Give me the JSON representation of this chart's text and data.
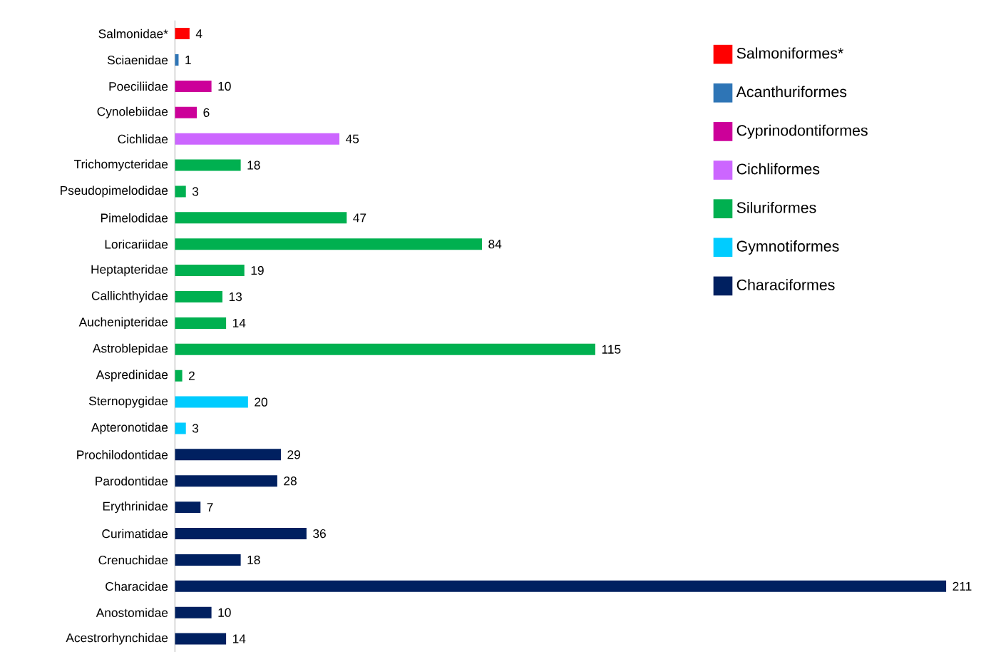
{
  "chart_data": {
    "type": "bar",
    "orientation": "horizontal",
    "data_labels": true,
    "legend": "top right",
    "categories": [
      "Salmonidae*",
      "Sciaenidae",
      "Poeciliidae",
      "Cynolebiidae",
      "Cichlidae",
      "Trichomycteridae",
      "Pseudopimelodidae",
      "Pimelodidae",
      "Loricariidae",
      "Heptapteridae",
      "Callichthyidae",
      "Auchenipteridae",
      "Astroblepidae",
      "Aspredinidae",
      "Sternopygidae",
      "Apteronotidae",
      "Prochilodontidae",
      "Parodontidae",
      "Erythrinidae",
      "Curimatidae",
      "Crenuchidae",
      "Characidae",
      "Anostomidae",
      "Acestrorhynchidae"
    ],
    "series": [
      {
        "name": "Salmoniformes*",
        "color": "#ff0000",
        "values": [
          4,
          null,
          null,
          null,
          null,
          null,
          null,
          null,
          null,
          null,
          null,
          null,
          null,
          null,
          null,
          null,
          null,
          null,
          null,
          null,
          null,
          null,
          null,
          null
        ]
      },
      {
        "name": "Acanthuriformes",
        "color": "#2e75b6",
        "values": [
          null,
          1,
          null,
          null,
          null,
          null,
          null,
          null,
          null,
          null,
          null,
          null,
          null,
          null,
          null,
          null,
          null,
          null,
          null,
          null,
          null,
          null,
          null,
          null
        ]
      },
      {
        "name": "Cyprinodontiformes",
        "color": "#cc0099",
        "values": [
          null,
          null,
          10,
          6,
          null,
          null,
          null,
          null,
          null,
          null,
          null,
          null,
          null,
          null,
          null,
          null,
          null,
          null,
          null,
          null,
          null,
          null,
          null,
          null
        ]
      },
      {
        "name": "Cichliformes",
        "color": "#cc66ff",
        "values": [
          null,
          null,
          null,
          null,
          45,
          null,
          null,
          null,
          null,
          null,
          null,
          null,
          null,
          null,
          null,
          null,
          null,
          null,
          null,
          null,
          null,
          null,
          null,
          null
        ]
      },
      {
        "name": "Siluriformes",
        "color": "#00b050",
        "values": [
          null,
          null,
          null,
          null,
          null,
          18,
          3,
          47,
          84,
          19,
          13,
          14,
          115,
          2,
          null,
          null,
          null,
          null,
          null,
          null,
          null,
          null,
          null,
          null
        ]
      },
      {
        "name": "Gymnotiformes",
        "color": "#00ccff",
        "values": [
          null,
          null,
          null,
          null,
          null,
          null,
          null,
          null,
          null,
          null,
          null,
          null,
          null,
          null,
          20,
          3,
          null,
          null,
          null,
          null,
          null,
          null,
          null,
          null
        ]
      },
      {
        "name": "Characiformes",
        "color": "#002060",
        "values": [
          null,
          null,
          null,
          null,
          null,
          null,
          null,
          null,
          null,
          null,
          null,
          null,
          null,
          null,
          null,
          null,
          29,
          28,
          7,
          36,
          18,
          211,
          10,
          14
        ]
      }
    ]
  }
}
